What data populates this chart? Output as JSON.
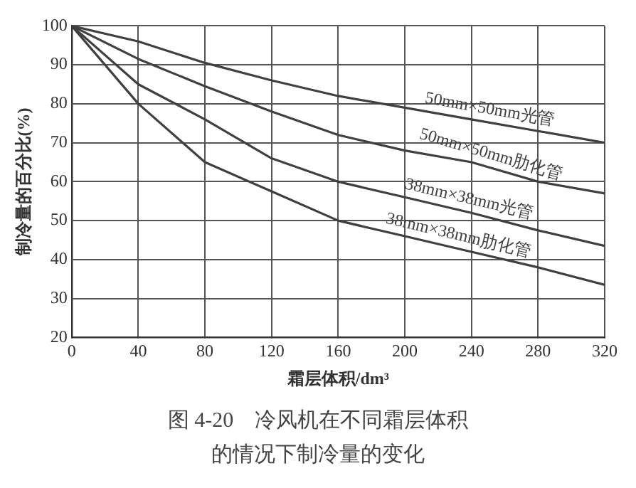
{
  "chart_data": {
    "type": "line",
    "title": "图 4-20　冷风机在不同霜层体积的情况下制冷量的变化",
    "xlabel": "霜层体积/dm³",
    "ylabel": "制冷量的百分比(%)",
    "x": [
      0,
      40,
      80,
      120,
      160,
      200,
      240,
      280,
      320
    ],
    "series": [
      {
        "name": "50mm×50mm光管",
        "color": "#404040",
        "values": [
          100,
          96,
          90.5,
          86,
          82,
          79,
          76,
          73,
          70
        ]
      },
      {
        "name": "50mm×50mm肋化管",
        "color": "#404040",
        "values": [
          100,
          91.5,
          84.5,
          78,
          72,
          68,
          65,
          60,
          57
        ]
      },
      {
        "name": "38mm×38mm光管",
        "color": "#404040",
        "values": [
          100,
          85,
          76,
          66,
          60,
          56,
          52,
          47.5,
          43.5
        ]
      },
      {
        "name": "38mm×38mm肋化管",
        "color": "#404040",
        "values": [
          100,
          80,
          65,
          57.5,
          50,
          46,
          42,
          38,
          33.5
        ]
      }
    ],
    "xlim": [
      0,
      320
    ],
    "xticks": [
      0,
      40,
      80,
      120,
      160,
      200,
      240,
      280,
      320
    ],
    "ylim": [
      20,
      100
    ],
    "yticks": [
      20,
      30,
      40,
      50,
      60,
      70,
      80,
      90,
      100
    ],
    "grid": true,
    "legend": false
  }
}
